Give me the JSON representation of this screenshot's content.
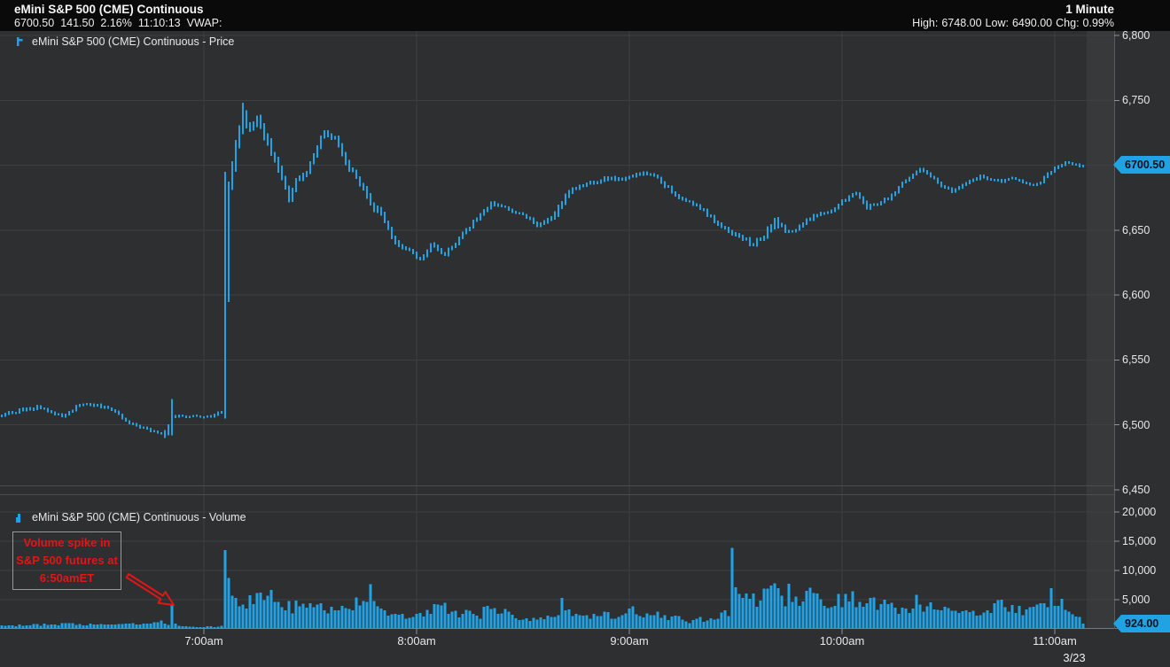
{
  "header": {
    "title": "eMini S&P 500 (CME) Continuous",
    "quote": {
      "last": "6700.50",
      "change": "141.50",
      "change_pct": "2.16%",
      "time": "11:10:13",
      "vwap_label": "VWAP:"
    },
    "timeframe": "1 Minute",
    "stats": {
      "high_label": "High:",
      "high": "6748.00",
      "low_label": "Low:",
      "low": "6490.00",
      "chg_label": "Chg:",
      "chg": "0.99%"
    }
  },
  "panels": {
    "price": {
      "label": "eMini S&P 500 (CME) Continuous - Price",
      "tag": "6700.50"
    },
    "volume": {
      "label": "eMini S&P 500 (CME) Continuous - Volume",
      "tag": "924.00"
    }
  },
  "annotation": {
    "lines": [
      "Volume spike in",
      "S&P 500 futures at",
      "6:50amET"
    ]
  },
  "axes": {
    "price_ticks": [
      {
        "label": "6,800",
        "value": 6800
      },
      {
        "label": "6,750",
        "value": 6750
      },
      {
        "label": "6,700",
        "value": 6700,
        "hidden": true
      },
      {
        "label": "6,650",
        "value": 6650
      },
      {
        "label": "6,600",
        "value": 6600
      },
      {
        "label": "6,550",
        "value": 6550
      },
      {
        "label": "6,500",
        "value": 6500
      },
      {
        "label": "6,450",
        "value": 6450,
        "no_gridline": true
      }
    ],
    "volume_ticks": [
      {
        "label": "20,000",
        "value": 20000
      },
      {
        "label": "15,000",
        "value": 15000
      },
      {
        "label": "10,000",
        "value": 10000
      },
      {
        "label": "5,000",
        "value": 5000
      }
    ],
    "time_ticks": [
      {
        "label": "7:00am",
        "bar": 57
      },
      {
        "label": "8:00am",
        "bar": 117
      },
      {
        "label": "9:00am",
        "bar": 177
      },
      {
        "label": "10:00am",
        "bar": 237
      },
      {
        "label": "11:00am",
        "bar": 297
      }
    ],
    "date_label": "3/23"
  },
  "colors": {
    "accent": "#21a2e2",
    "background": "#2e2f31",
    "header_bg": "#0a0a0a",
    "grid": "#3e3f41",
    "panel_border": "#4a4c4e",
    "axis_line": "#5a5d60",
    "tick": "#8f9296",
    "baseline": "#77797d",
    "band": "rgba(255,255,255,0.05)",
    "annotation_red": "#e31515",
    "tag_text": "#04131d"
  },
  "chart_data": {
    "type": "bar",
    "subtype": "intraday price range bars + volume histogram",
    "title": "eMini S&P 500 (CME) Continuous",
    "interval": "1 Minute",
    "date": "3/23",
    "last_price": 6700.5,
    "last_volume": 924,
    "session_high": 6748.0,
    "session_low": 6490.0,
    "change_pct": "0.99%",
    "price_axis_range": [
      6443,
      6803
    ],
    "volume_axis_range": [
      0,
      21000
    ],
    "bars_total": 306,
    "first_bar_time": "6:03am",
    "legend": [
      "Price",
      "Volume"
    ],
    "grid": true,
    "price_keyframes": [
      [
        0,
        6508,
        4
      ],
      [
        10,
        6514,
        4
      ],
      [
        17,
        6507,
        3
      ],
      [
        23,
        6517,
        4
      ],
      [
        30,
        6513,
        3
      ],
      [
        37,
        6500,
        3
      ],
      [
        43,
        6495,
        3
      ],
      [
        46,
        6492,
        3
      ],
      [
        48,
        6506,
        6
      ],
      [
        50,
        6507,
        3
      ],
      [
        57,
        6506,
        3
      ],
      [
        62,
        6510,
        4
      ],
      [
        63,
        6600,
        95
      ],
      [
        64,
        6685,
        18
      ],
      [
        66,
        6716,
        16
      ],
      [
        68,
        6737,
        11
      ],
      [
        70,
        6726,
        13
      ],
      [
        72,
        6736,
        10
      ],
      [
        75,
        6716,
        11
      ],
      [
        78,
        6697,
        9
      ],
      [
        81,
        6673,
        11
      ],
      [
        83,
        6687,
        9
      ],
      [
        86,
        6695,
        7
      ],
      [
        89,
        6716,
        8
      ],
      [
        91,
        6727,
        7
      ],
      [
        94,
        6721,
        8
      ],
      [
        97,
        6702,
        8
      ],
      [
        101,
        6687,
        7
      ],
      [
        105,
        6668,
        9
      ],
      [
        108,
        6658,
        6
      ],
      [
        111,
        6640,
        6
      ],
      [
        115,
        6634,
        5
      ],
      [
        118,
        6628,
        5
      ],
      [
        121,
        6638,
        5
      ],
      [
        125,
        6632,
        5
      ],
      [
        128,
        6640,
        5
      ],
      [
        131,
        6650,
        5
      ],
      [
        135,
        6662,
        5
      ],
      [
        138,
        6670,
        5
      ],
      [
        141,
        6668,
        4
      ],
      [
        145,
        6664,
        4
      ],
      [
        148,
        6660,
        4
      ],
      [
        151,
        6654,
        4
      ],
      [
        154,
        6658,
        5
      ],
      [
        157,
        6668,
        10
      ],
      [
        160,
        6680,
        6
      ],
      [
        164,
        6684,
        5
      ],
      [
        167,
        6687,
        5
      ],
      [
        171,
        6690,
        5
      ],
      [
        174,
        6689,
        4
      ],
      [
        178,
        6692,
        5
      ],
      [
        181,
        6694,
        5
      ],
      [
        184,
        6692,
        4
      ],
      [
        188,
        6682,
        5
      ],
      [
        191,
        6676,
        5
      ],
      [
        194,
        6671,
        4
      ],
      [
        198,
        6665,
        5
      ],
      [
        201,
        6657,
        5
      ],
      [
        205,
        6650,
        5
      ],
      [
        208,
        6644,
        6
      ],
      [
        212,
        6640,
        6
      ],
      [
        215,
        6646,
        6
      ],
      [
        218,
        6658,
        12
      ],
      [
        221,
        6648,
        5
      ],
      [
        224,
        6650,
        4
      ],
      [
        227,
        6658,
        5
      ],
      [
        231,
        6662,
        5
      ],
      [
        234,
        6665,
        4
      ],
      [
        237,
        6672,
        4
      ],
      [
        241,
        6678,
        4
      ],
      [
        244,
        6668,
        5
      ],
      [
        247,
        6670,
        4
      ],
      [
        251,
        6676,
        4
      ],
      [
        254,
        6686,
        4
      ],
      [
        257,
        6693,
        4
      ],
      [
        259,
        6697,
        4
      ],
      [
        262,
        6692,
        4
      ],
      [
        265,
        6683,
        4
      ],
      [
        268,
        6680,
        4
      ],
      [
        271,
        6685,
        4
      ],
      [
        274,
        6688,
        4
      ],
      [
        276,
        6692,
        4
      ],
      [
        279,
        6689,
        4
      ],
      [
        282,
        6688,
        3
      ],
      [
        285,
        6690,
        3
      ],
      [
        288,
        6687,
        3
      ],
      [
        291,
        6684,
        3
      ],
      [
        294,
        6690,
        4
      ],
      [
        297,
        6698,
        4
      ],
      [
        300,
        6702,
        4
      ],
      [
        302,
        6701,
        3
      ],
      [
        304,
        6699,
        3
      ],
      [
        305,
        6700.5,
        2
      ]
    ],
    "price_exact_bars": [
      [
        46,
        6496,
        6490
      ],
      [
        48,
        6520,
        6492
      ],
      [
        63,
        6695,
        6505
      ],
      [
        68,
        6748,
        6724
      ]
    ],
    "volume_keyframes": [
      [
        0,
        600
      ],
      [
        12,
        750
      ],
      [
        22,
        800
      ],
      [
        32,
        700
      ],
      [
        40,
        900
      ],
      [
        45,
        1200
      ],
      [
        49,
        700
      ],
      [
        52,
        350
      ],
      [
        57,
        300
      ],
      [
        61,
        450
      ],
      [
        62,
        600
      ],
      [
        64,
        8300
      ],
      [
        65,
        7300
      ],
      [
        67,
        5200
      ],
      [
        68,
        4300
      ],
      [
        70,
        5000
      ],
      [
        72,
        5600
      ],
      [
        74,
        4600
      ],
      [
        76,
        5500
      ],
      [
        78,
        5300
      ],
      [
        80,
        4300
      ],
      [
        82,
        3600
      ],
      [
        84,
        4400
      ],
      [
        86,
        3800
      ],
      [
        88,
        4700
      ],
      [
        90,
        4300
      ],
      [
        92,
        3300
      ],
      [
        94,
        3800
      ],
      [
        96,
        3300
      ],
      [
        98,
        4100
      ],
      [
        100,
        4600
      ],
      [
        102,
        5200
      ],
      [
        104,
        6300
      ],
      [
        106,
        5000
      ],
      [
        107,
        4100
      ],
      [
        109,
        3100
      ],
      [
        111,
        2600
      ],
      [
        113,
        2200
      ],
      [
        115,
        2100
      ],
      [
        117,
        2400
      ],
      [
        119,
        2100
      ],
      [
        121,
        3300
      ],
      [
        123,
        4400
      ],
      [
        125,
        3600
      ],
      [
        127,
        2800
      ],
      [
        129,
        2400
      ],
      [
        131,
        3400
      ],
      [
        133,
        2800
      ],
      [
        135,
        2300
      ],
      [
        137,
        3800
      ],
      [
        139,
        3100
      ],
      [
        141,
        2600
      ],
      [
        143,
        2900
      ],
      [
        145,
        2300
      ],
      [
        147,
        1900
      ],
      [
        149,
        1700
      ],
      [
        151,
        1500
      ],
      [
        153,
        1900
      ],
      [
        155,
        2300
      ],
      [
        157,
        3100
      ],
      [
        159,
        3600
      ],
      [
        160,
        3300
      ],
      [
        162,
        2600
      ],
      [
        164,
        2100
      ],
      [
        166,
        1800
      ],
      [
        168,
        2300
      ],
      [
        170,
        2600
      ],
      [
        172,
        2100
      ],
      [
        174,
        1900
      ],
      [
        176,
        2600
      ],
      [
        178,
        3300
      ],
      [
        180,
        2800
      ],
      [
        182,
        2300
      ],
      [
        184,
        2600
      ],
      [
        186,
        2100
      ],
      [
        188,
        1800
      ],
      [
        190,
        2100
      ],
      [
        192,
        1700
      ],
      [
        194,
        1400
      ],
      [
        196,
        1800
      ],
      [
        198,
        1500
      ],
      [
        200,
        1900
      ],
      [
        202,
        2300
      ],
      [
        204,
        2600
      ],
      [
        205,
        3000
      ],
      [
        207,
        7300
      ],
      [
        209,
        5200
      ],
      [
        212,
        4800
      ],
      [
        215,
        5400
      ],
      [
        217,
        6000
      ],
      [
        220,
        5200
      ],
      [
        224,
        4600
      ],
      [
        228,
        5800
      ],
      [
        231,
        4300
      ],
      [
        235,
        4800
      ],
      [
        240,
        5400
      ],
      [
        244,
        4100
      ],
      [
        248,
        4400
      ],
      [
        252,
        3200
      ],
      [
        256,
        3500
      ],
      [
        261,
        3800
      ],
      [
        265,
        2900
      ],
      [
        270,
        3300
      ],
      [
        274,
        2700
      ],
      [
        278,
        3000
      ],
      [
        281,
        4000
      ],
      [
        285,
        3400
      ],
      [
        289,
        2900
      ],
      [
        292,
        3500
      ],
      [
        295,
        4800
      ],
      [
        298,
        4600
      ],
      [
        301,
        3300
      ],
      [
        304,
        2200
      ]
    ],
    "volume_exact_bars": [
      [
        48,
        4100
      ],
      [
        63,
        13500
      ],
      [
        158,
        5300
      ],
      [
        206,
        13900
      ],
      [
        218,
        7800
      ],
      [
        222,
        7700
      ],
      [
        258,
        5800
      ],
      [
        282,
        5000
      ],
      [
        296,
        7000
      ],
      [
        305,
        924
      ]
    ]
  }
}
